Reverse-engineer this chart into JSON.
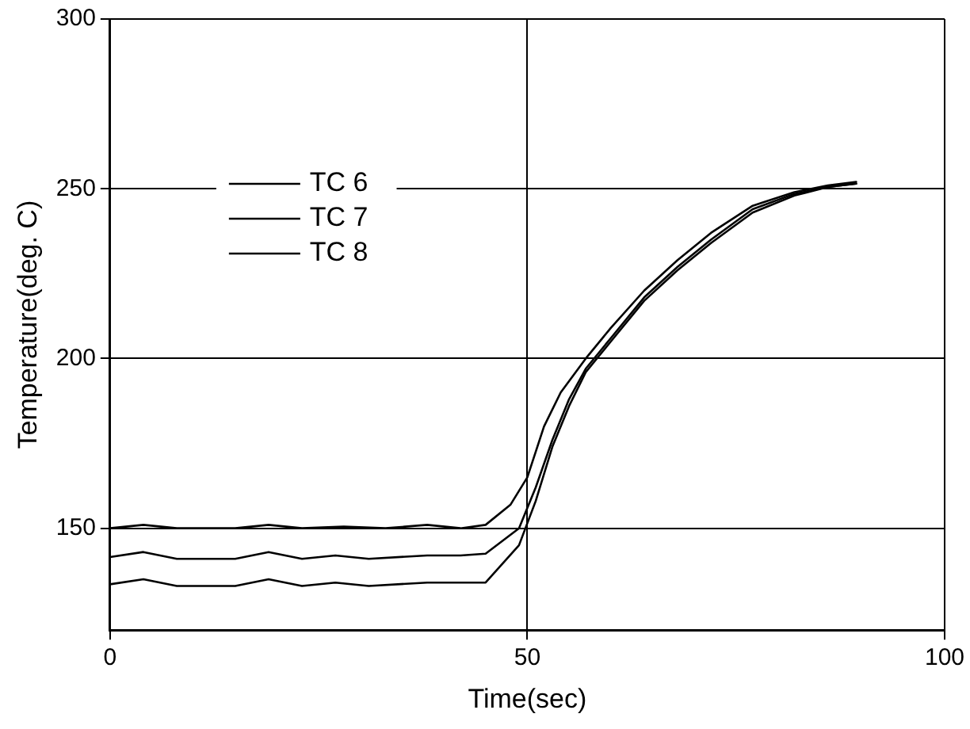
{
  "chart_data": {
    "type": "line",
    "xlabel": "Time(sec)",
    "ylabel": "Temperature(deg. C)",
    "xlim": [
      0,
      100
    ],
    "xticks": [
      0,
      50,
      100
    ],
    "ylim": [
      120,
      300
    ],
    "yticks": [
      150,
      200,
      250,
      300
    ],
    "grid": true,
    "legend": "top left",
    "marker": "none",
    "line_style": "solid",
    "series": [
      {
        "name": "TC 6",
        "color": "#000000",
        "x": [
          0,
          4,
          8,
          15,
          19,
          23,
          28,
          33,
          38,
          42,
          45,
          48,
          50,
          52,
          54,
          57,
          60,
          64,
          68,
          72,
          77,
          82,
          86,
          89.4
        ],
        "values": [
          150,
          151,
          150,
          150,
          151,
          150,
          150.5,
          150,
          151,
          150,
          151,
          157,
          165,
          180,
          190,
          200,
          209,
          220,
          229,
          237,
          245,
          249,
          251,
          252
        ]
      },
      {
        "name": "TC 7",
        "color": "#000000",
        "x": [
          0,
          4,
          8,
          15,
          19,
          23,
          27,
          31,
          38,
          42,
          45,
          49,
          51,
          53,
          55,
          57,
          60,
          64,
          68,
          72,
          77,
          82,
          86,
          89.4
        ],
        "values": [
          141.5,
          143,
          141,
          141,
          143,
          141,
          142,
          141,
          142,
          142,
          142.5,
          150,
          162,
          176,
          188,
          197,
          206,
          218,
          227,
          235,
          244,
          248.5,
          250.5,
          251.5
        ]
      },
      {
        "name": "TC 8",
        "color": "#000000",
        "x": [
          0,
          4,
          8,
          15,
          19,
          23,
          27,
          31,
          38,
          42,
          45,
          49,
          51,
          53,
          55,
          57,
          60,
          64,
          68,
          72,
          77,
          82,
          86,
          89.4
        ],
        "values": [
          133.5,
          135,
          133,
          133,
          135,
          133,
          134,
          133,
          134,
          134,
          134,
          145,
          158,
          174,
          186,
          196,
          205,
          217,
          226,
          234,
          243,
          248,
          250.5,
          251.5
        ]
      }
    ]
  }
}
